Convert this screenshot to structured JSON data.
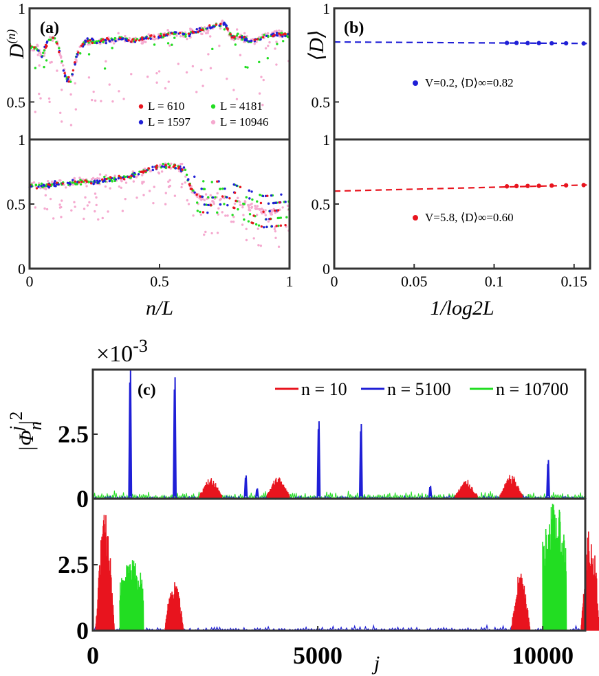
{
  "chart_data": [
    {
      "id": "a",
      "type": "scatter",
      "panel_label": "(a)",
      "xlabel": "n/L",
      "ylabel": "D^(n)",
      "xlim": [
        0,
        1
      ],
      "top_ylim": [
        0.3,
        1
      ],
      "bottom_ylim": [
        0,
        1
      ],
      "top_yticks": [
        {
          "v": 1,
          "t": "1"
        },
        {
          "v": 0.5,
          "t": "0.5"
        }
      ],
      "bottom_yticks": [
        {
          "v": 1,
          "t": "1"
        },
        {
          "v": 0.5,
          "t": "0.5"
        },
        {
          "v": 0,
          "t": "0"
        }
      ],
      "xticks": [
        {
          "v": 0,
          "t": "0"
        },
        {
          "v": 0.5,
          "t": "0.5"
        },
        {
          "v": 1,
          "t": "1"
        }
      ],
      "legend_position": "bottom-right of top subpanel",
      "series": [
        {
          "name": "L = 610",
          "color": "#e8141e"
        },
        {
          "name": "L = 1597",
          "color": "#1f1fd6"
        },
        {
          "name": "L = 4181",
          "color": "#22dd22"
        },
        {
          "name": "L = 10946",
          "color": "#f5a9cf"
        }
      ],
      "top_profile": [
        [
          0,
          0.8
        ],
        [
          0.03,
          0.78
        ],
        [
          0.05,
          0.74
        ],
        [
          0.07,
          0.83
        ],
        [
          0.1,
          0.84
        ],
        [
          0.12,
          0.74
        ],
        [
          0.14,
          0.62
        ],
        [
          0.16,
          0.62
        ],
        [
          0.18,
          0.74
        ],
        [
          0.2,
          0.8
        ],
        [
          0.22,
          0.83
        ],
        [
          0.25,
          0.82
        ],
        [
          0.3,
          0.83
        ],
        [
          0.35,
          0.84
        ],
        [
          0.4,
          0.83
        ],
        [
          0.45,
          0.84
        ],
        [
          0.5,
          0.85
        ],
        [
          0.55,
          0.87
        ],
        [
          0.6,
          0.86
        ],
        [
          0.65,
          0.88
        ],
        [
          0.7,
          0.9
        ],
        [
          0.75,
          0.92
        ],
        [
          0.78,
          0.84
        ],
        [
          0.8,
          0.86
        ],
        [
          0.85,
          0.82
        ],
        [
          0.9,
          0.85
        ],
        [
          0.95,
          0.86
        ],
        [
          1.0,
          0.86
        ]
      ],
      "bottom_profile": [
        [
          0,
          0.64
        ],
        [
          0.05,
          0.64
        ],
        [
          0.1,
          0.66
        ],
        [
          0.15,
          0.66
        ],
        [
          0.2,
          0.67
        ],
        [
          0.25,
          0.67
        ],
        [
          0.3,
          0.69
        ],
        [
          0.35,
          0.7
        ],
        [
          0.4,
          0.72
        ],
        [
          0.45,
          0.76
        ],
        [
          0.5,
          0.79
        ],
        [
          0.55,
          0.8
        ],
        [
          0.6,
          0.76
        ],
        [
          0.62,
          0.62
        ],
        [
          0.65,
          0.56
        ],
        [
          0.7,
          0.55
        ],
        [
          0.75,
          0.56
        ],
        [
          0.8,
          0.52
        ],
        [
          0.85,
          0.48
        ],
        [
          0.9,
          0.44
        ],
        [
          0.95,
          0.45
        ],
        [
          1.0,
          0.46
        ]
      ]
    },
    {
      "id": "b",
      "type": "scatter",
      "panel_label": "(b)",
      "xlabel": "1/log2L",
      "ylabel": "⟨D⟩",
      "xlim": [
        0,
        0.16
      ],
      "top_ylim": [
        0.3,
        1
      ],
      "bottom_ylim": [
        0,
        1
      ],
      "top_yticks": [
        {
          "v": 1,
          "t": "1"
        },
        {
          "v": 0.5,
          "t": "0.5"
        }
      ],
      "bottom_yticks": [
        {
          "v": 1,
          "t": "1"
        },
        {
          "v": 0.5,
          "t": "0.5"
        },
        {
          "v": 0,
          "t": "0"
        }
      ],
      "xticks": [
        {
          "v": 0,
          "t": "0"
        },
        {
          "v": 0.05,
          "t": "0.05"
        },
        {
          "v": 0.1,
          "t": "0.1"
        },
        {
          "v": 0.15,
          "t": "0.15"
        }
      ],
      "top_series": {
        "label": "V=0.2, ⟨D⟩∞=0.82",
        "color": "#1f1fd6",
        "x": [
          0.108,
          0.114,
          0.121,
          0.128,
          0.136,
          0.145,
          0.156
        ],
        "y": [
          0.815,
          0.815,
          0.814,
          0.814,
          0.813,
          0.813,
          0.812
        ],
        "fit": {
          "intercept": 0.82,
          "slope": -0.05
        }
      },
      "bottom_series": {
        "label": "V=5.8, ⟨D⟩∞=0.60",
        "color": "#e8141e",
        "x": [
          0.108,
          0.114,
          0.121,
          0.128,
          0.136,
          0.145,
          0.156
        ],
        "y": [
          0.637,
          0.639,
          0.64,
          0.641,
          0.643,
          0.645,
          0.647
        ],
        "fit": {
          "intercept": 0.6,
          "slope": 0.3
        }
      }
    },
    {
      "id": "c",
      "type": "line",
      "panel_label": "(c)",
      "xlabel": "j",
      "ylabel": "|Φ_n^j|^2",
      "exponent_label": "×10-3",
      "xlim": [
        0,
        10946
      ],
      "top_ylim": [
        0,
        5
      ],
      "bottom_ylim": [
        0,
        5
      ],
      "top_yticks": [
        {
          "v": 2.5,
          "t": "2.5"
        },
        {
          "v": 0,
          "t": "0"
        }
      ],
      "bottom_yticks": [
        {
          "v": 2.5,
          "t": "2.5"
        },
        {
          "v": 0,
          "t": "0"
        }
      ],
      "xticks": [
        {
          "v": 0,
          "t": "0"
        },
        {
          "v": 5000,
          "t": "5000"
        },
        {
          "v": 10000,
          "t": "10000"
        }
      ],
      "legend_position": "top",
      "series": [
        {
          "name": "n = 10",
          "color": "#e8141e"
        },
        {
          "name": "n = 5100",
          "color": "#1f1fd6"
        },
        {
          "name": "n = 10700",
          "color": "#22dd22"
        }
      ],
      "top_peaks": {
        "blue": [
          [
            830,
            5.0
          ],
          [
            1820,
            4.7
          ],
          [
            5020,
            3.0
          ],
          [
            5960,
            2.9
          ],
          [
            3400,
            0.9
          ],
          [
            7500,
            0.5
          ],
          [
            10120,
            1.5
          ],
          [
            3650,
            0.4
          ]
        ],
        "red": [
          [
            2620,
            0.85
          ],
          [
            4120,
            0.9
          ],
          [
            8300,
            0.75
          ],
          [
            9300,
            0.95
          ]
        ]
      },
      "bottom_blocks": {
        "red": [
          [
            60,
            4.5
          ],
          [
            1600,
            2.1
          ],
          [
            9300,
            2.4
          ],
          [
            10850,
            4.0
          ]
        ],
        "green": [
          [
            600,
            2.75
          ],
          [
            10000,
            4.9
          ]
        ]
      }
    }
  ]
}
